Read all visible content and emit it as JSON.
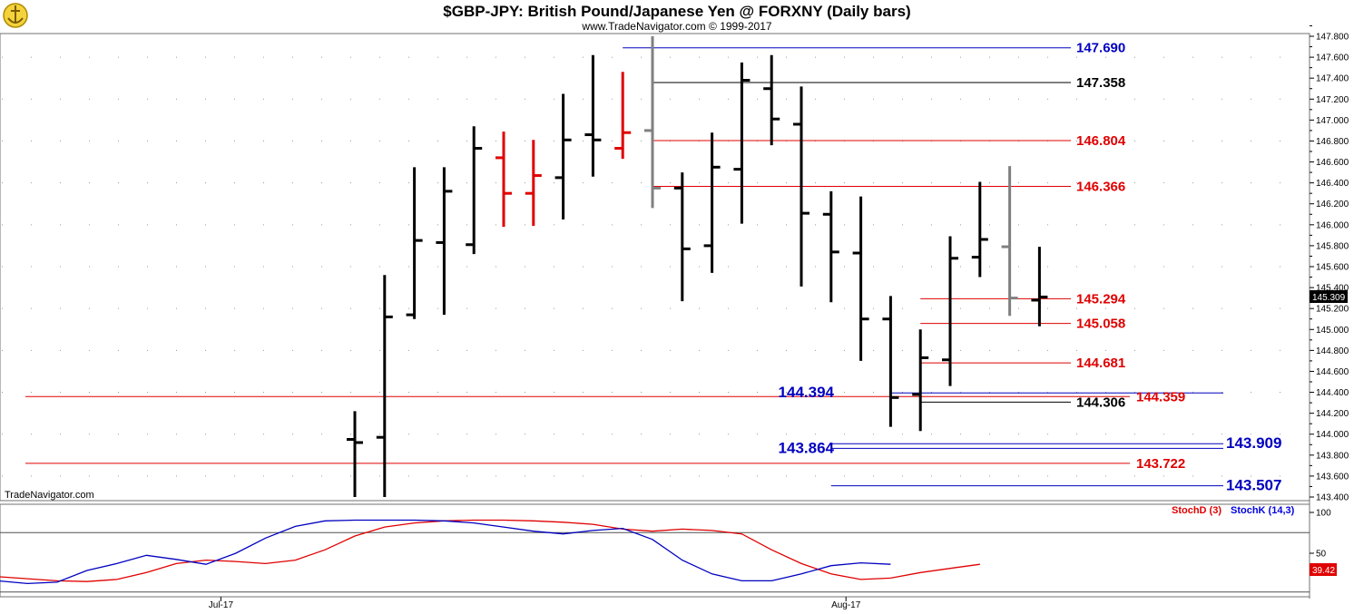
{
  "header": {
    "title": "$GBP-JPY:  British Pound/Japanese Yen @ FORXNY  (Daily bars)",
    "subtitle": "www.TradeNavigator.com © 1999-2017",
    "watermark": "TradeNavigator.com"
  },
  "colors": {
    "bar_black": "#000000",
    "bar_red": "#e00000",
    "bar_gray": "#808080",
    "line_blue": "#0000c0",
    "line_red": "#e00000",
    "line_black": "#000000",
    "stoch_d": "#e00000",
    "stoch_k": "#0000e0",
    "grid": "#9a9a9a"
  },
  "chart_data": [
    {
      "type": "ohlc",
      "title": "$GBP-JPY:  British Pound/Japanese Yen @ FORXNY  (Daily bars)",
      "ylim": [
        143.4,
        147.8
      ],
      "y_ticks": [
        "147.800",
        "147.600",
        "147.400",
        "147.200",
        "147.000",
        "146.800",
        "146.600",
        "146.400",
        "146.200",
        "146.000",
        "145.800",
        "145.600",
        "145.400",
        "145.200",
        "145.000",
        "144.800",
        "144.600",
        "144.400",
        "144.200",
        "144.000",
        "143.800",
        "143.600",
        "143.400"
      ],
      "x_labels": [
        {
          "label": "Jul-17",
          "bar_index": 3.5
        },
        {
          "label": "Aug-17",
          "bar_index": 24.5
        }
      ],
      "last_price": "145.309",
      "bars": [
        {
          "o": 143.95,
          "h": 144.22,
          "l": 143.4,
          "c": 143.92,
          "color": "black"
        },
        {
          "o": 143.97,
          "h": 145.52,
          "l": 143.4,
          "c": 145.12,
          "color": "black"
        },
        {
          "o": 145.14,
          "h": 146.55,
          "l": 145.1,
          "c": 145.85,
          "color": "black"
        },
        {
          "o": 145.83,
          "h": 146.55,
          "l": 145.14,
          "c": 146.32,
          "color": "black"
        },
        {
          "o": 145.81,
          "h": 146.94,
          "l": 145.72,
          "c": 146.73,
          "color": "black"
        },
        {
          "o": 146.64,
          "h": 146.89,
          "l": 145.98,
          "c": 146.3,
          "color": "red"
        },
        {
          "o": 146.3,
          "h": 146.81,
          "l": 145.99,
          "c": 146.47,
          "color": "red"
        },
        {
          "o": 146.45,
          "h": 147.25,
          "l": 146.05,
          "c": 146.81,
          "color": "black"
        },
        {
          "o": 146.86,
          "h": 147.62,
          "l": 146.46,
          "c": 146.81,
          "color": "black"
        },
        {
          "o": 146.73,
          "h": 147.46,
          "l": 146.63,
          "c": 146.88,
          "color": "red"
        },
        {
          "o": 146.9,
          "h": 147.8,
          "l": 146.16,
          "c": 146.35,
          "color": "gray"
        },
        {
          "o": 146.35,
          "h": 146.5,
          "l": 145.27,
          "c": 145.77,
          "color": "black"
        },
        {
          "o": 145.8,
          "h": 146.88,
          "l": 145.54,
          "c": 146.55,
          "color": "black"
        },
        {
          "o": 146.53,
          "h": 147.55,
          "l": 146.01,
          "c": 147.38,
          "color": "black"
        },
        {
          "o": 147.3,
          "h": 147.62,
          "l": 146.76,
          "c": 147.01,
          "color": "black"
        },
        {
          "o": 146.96,
          "h": 147.32,
          "l": 145.41,
          "c": 146.11,
          "color": "black"
        },
        {
          "o": 146.1,
          "h": 146.32,
          "l": 145.26,
          "c": 145.74,
          "color": "black"
        },
        {
          "o": 145.73,
          "h": 146.27,
          "l": 144.7,
          "c": 145.1,
          "color": "black"
        },
        {
          "o": 145.1,
          "h": 145.32,
          "l": 144.07,
          "c": 144.35,
          "color": "black"
        },
        {
          "o": 144.38,
          "h": 145.0,
          "l": 144.03,
          "c": 144.73,
          "color": "black"
        },
        {
          "o": 144.71,
          "h": 145.89,
          "l": 144.46,
          "c": 145.68,
          "color": "black"
        },
        {
          "o": 145.69,
          "h": 146.41,
          "l": 145.5,
          "c": 145.86,
          "color": "black"
        },
        {
          "o": 145.79,
          "h": 146.56,
          "l": 145.13,
          "c": 145.3,
          "color": "gray"
        },
        {
          "o": 145.28,
          "h": 145.79,
          "l": 145.03,
          "c": 145.31,
          "color": "black"
        }
      ],
      "levels": [
        {
          "value": 147.69,
          "label": "147.690",
          "color": "blue",
          "label_side": "right",
          "from_bar": 9.0
        },
        {
          "value": 147.358,
          "label": "147.358",
          "color": "black",
          "label_side": "right",
          "from_bar": 10.0
        },
        {
          "value": 146.804,
          "label": "146.804",
          "color": "red",
          "label_side": "right",
          "from_bar": 10.0
        },
        {
          "value": 146.366,
          "label": "146.366",
          "color": "red",
          "label_side": "right",
          "from_bar": 10.0
        },
        {
          "value": 145.294,
          "label": "145.294",
          "color": "red",
          "label_side": "right",
          "from_bar": 19.0
        },
        {
          "value": 145.058,
          "label": "145.058",
          "color": "red",
          "label_side": "right",
          "from_bar": 19.0
        },
        {
          "value": 144.681,
          "label": "144.681",
          "color": "red",
          "label_side": "right",
          "from_bar": 19.0
        },
        {
          "value": 144.394,
          "label": "144.394",
          "color": "blue",
          "label_side": "left",
          "from_bar": 18.0
        },
        {
          "value": 144.359,
          "label": "144.359",
          "color": "red",
          "label_side": "farright",
          "from_bar": -12.0
        },
        {
          "value": 144.306,
          "label": "144.306",
          "color": "black",
          "label_side": "right",
          "from_bar": 19.0
        },
        {
          "value": 143.909,
          "label": "143.909",
          "color": "blue",
          "label_side": "farright",
          "from_bar": 16.0
        },
        {
          "value": 143.864,
          "label": "143.864",
          "color": "blue",
          "label_side": "left",
          "from_bar": 16.0
        },
        {
          "value": 143.722,
          "label": "143.722",
          "color": "red",
          "label_side": "farright",
          "from_bar": -12.0
        },
        {
          "value": 143.507,
          "label": "143.507",
          "color": "blue",
          "label_side": "farright",
          "from_bar": 16.0
        }
      ]
    },
    {
      "type": "line",
      "title": "Stochastic",
      "ylim": [
        0,
        100
      ],
      "y_ticks": [
        "100",
        "50"
      ],
      "last_value": "39.42",
      "series": [
        {
          "name": "StochD (3)",
          "color": "red",
          "x_start": -12,
          "values": [
            16,
            13,
            10,
            9,
            12,
            22,
            35,
            40,
            38,
            35,
            40,
            55,
            75,
            88,
            94,
            97,
            98,
            98,
            97,
            95,
            92,
            85,
            82,
            85,
            83,
            78,
            55,
            35,
            20,
            12,
            14,
            22,
            28,
            34
          ]
        },
        {
          "name": "StochK (14,3)",
          "color": "blue",
          "x_start": -12,
          "values": [
            10,
            6,
            8,
            25,
            35,
            47,
            41,
            34,
            50,
            72,
            89,
            97,
            98,
            98,
            98,
            97,
            94,
            88,
            82,
            78,
            83,
            86,
            70,
            40,
            20,
            10,
            10,
            20,
            32,
            36,
            34
          ]
        }
      ]
    }
  ]
}
